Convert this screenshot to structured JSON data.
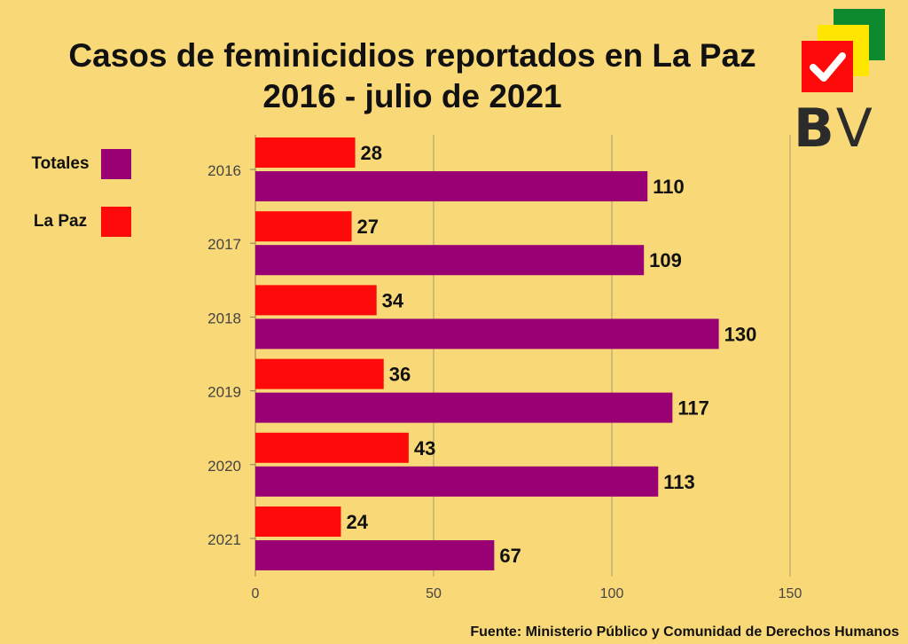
{
  "title_lines": [
    "Casos de feminicidios reportados en La Paz",
    "2016 - julio de 2021"
  ],
  "legend": [
    {
      "label": "Totales",
      "color": "#990073"
    },
    {
      "label": "La Paz",
      "color": "#FF0A0A"
    }
  ],
  "logo": {
    "letter_b": "B",
    "letter_v": "V",
    "colors": [
      "#0E8A2E",
      "#FFE600",
      "#FF0A0A"
    ]
  },
  "source": "Fuente: Ministerio Público y Comunidad de Derechos Humanos",
  "chart_data": {
    "type": "bar",
    "orientation": "horizontal",
    "categories": [
      "2016",
      "2017",
      "2018",
      "2019",
      "2020",
      "2021"
    ],
    "series": [
      {
        "name": "La Paz",
        "color": "#FF0A0A",
        "values": [
          28,
          27,
          34,
          36,
          43,
          24
        ]
      },
      {
        "name": "Totales",
        "color": "#990073",
        "values": [
          110,
          109,
          130,
          117,
          113,
          67
        ]
      }
    ],
    "xlim": [
      0,
      150
    ],
    "xticks": [
      0,
      50,
      100,
      150
    ],
    "grid": true,
    "legend_position": "left",
    "data_labels": true
  }
}
